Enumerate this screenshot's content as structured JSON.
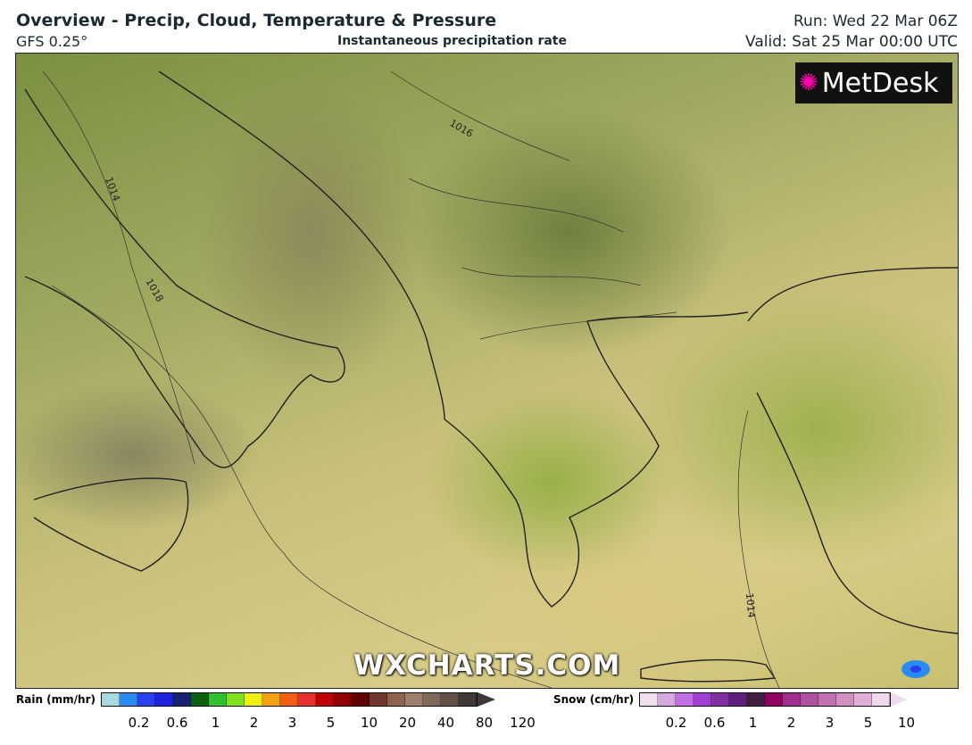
{
  "header": {
    "title": "Overview - Precip, Cloud, Temperature & Pressure",
    "model": "GFS 0.25°",
    "subtitle": "Instantaneous precipitation rate",
    "run": "Run: Wed 22 Mar 06Z",
    "valid": "Valid: Sat 25 Mar 00:00 UTC"
  },
  "map": {
    "logo": "MetDesk",
    "watermark": "WXCHARTS.COM",
    "isobar_labels": [
      "1014",
      "1018",
      "1016",
      "1014"
    ]
  },
  "legend": {
    "rain": {
      "label": "Rain (mm/hr)",
      "ticks": [
        "0.2",
        "0.6",
        "1",
        "2",
        "3",
        "5",
        "10",
        "20",
        "40",
        "80",
        "120"
      ],
      "colors": [
        "#a8d8e0",
        "#2a8cf0",
        "#2840f0",
        "#2020e0",
        "#1a2070",
        "#0a6010",
        "#30c030",
        "#80e020",
        "#f0f010",
        "#f0a010",
        "#f06010",
        "#e83030",
        "#c00000",
        "#900000",
        "#600000",
        "#703830",
        "#906050",
        "#a08070",
        "#806858",
        "#605048",
        "#403838"
      ]
    },
    "snow": {
      "label": "Snow (cm/hr)",
      "ticks": [
        "0.2",
        "0.6",
        "1",
        "2",
        "3",
        "5",
        "10"
      ],
      "colors": [
        "#f0e0f0",
        "#d8a8e0",
        "#c070e0",
        "#a040d0",
        "#8030a0",
        "#602080",
        "#402040",
        "#900060",
        "#a03090",
        "#b050a0",
        "#c070b0",
        "#d090c0",
        "#e0b0d8",
        "#f0d8f0"
      ]
    }
  }
}
